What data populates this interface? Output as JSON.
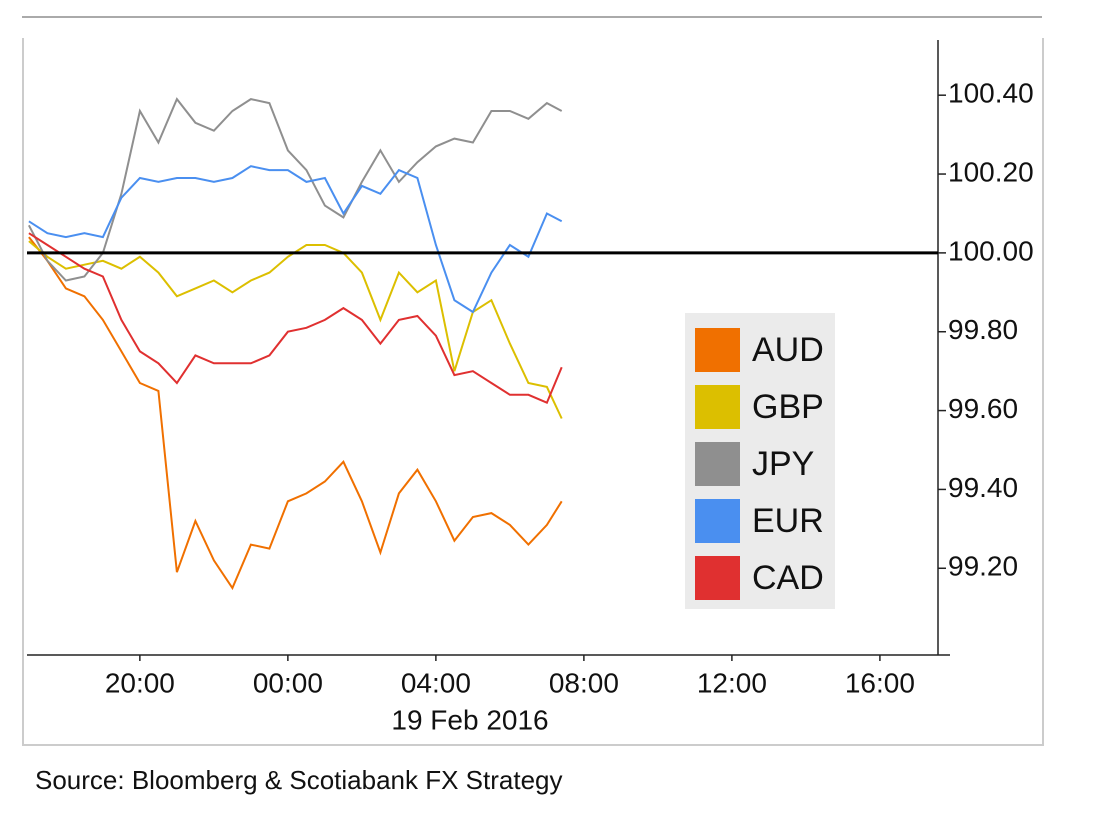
{
  "chart_data": {
    "type": "line",
    "x": [
      17.0,
      17.5,
      18.0,
      18.5,
      19.0,
      19.5,
      20.0,
      20.5,
      21.0,
      21.5,
      22.0,
      22.5,
      23.0,
      23.5,
      24.0,
      24.5,
      25.0,
      25.5,
      26.0,
      26.5,
      27.0,
      27.5,
      28.0,
      28.5,
      29.0,
      29.5,
      30.0,
      30.5,
      31.0,
      31.4
    ],
    "x_label": "19 Feb 2016",
    "xlim": [
      16.95,
      41.57
    ],
    "xticks": [
      {
        "value": 20,
        "label": "20:00"
      },
      {
        "value": 24,
        "label": "00:00"
      },
      {
        "value": 28,
        "label": "04:00"
      },
      {
        "value": 32,
        "label": "08:00"
      },
      {
        "value": 36,
        "label": "12:00"
      },
      {
        "value": 40,
        "label": "16:00"
      }
    ],
    "ylim": [
      98.98,
      100.54
    ],
    "yticks": [
      {
        "value": 99.2,
        "label": "99.20"
      },
      {
        "value": 99.4,
        "label": "99.40"
      },
      {
        "value": 99.6,
        "label": "99.60"
      },
      {
        "value": 99.8,
        "label": "99.80"
      },
      {
        "value": 100,
        "label": "100.00"
      },
      {
        "value": 100.2,
        "label": "100.20"
      },
      {
        "value": 100.4,
        "label": "100.40"
      }
    ],
    "reference_line": 100,
    "series": [
      {
        "name": "AUD",
        "color": "#f07000",
        "values": [
          100.04,
          99.98,
          99.91,
          99.89,
          99.83,
          99.75,
          99.67,
          99.65,
          99.19,
          99.32,
          99.22,
          99.15,
          99.26,
          99.25,
          99.37,
          99.39,
          99.42,
          99.47,
          99.37,
          99.24,
          99.39,
          99.45,
          99.37,
          99.27,
          99.33,
          99.34,
          99.31,
          99.26,
          99.31,
          99.37
        ]
      },
      {
        "name": "GBP",
        "color": "#dcbf00",
        "values": [
          100.03,
          99.99,
          99.96,
          99.97,
          99.98,
          99.96,
          99.99,
          99.95,
          99.89,
          99.91,
          99.93,
          99.9,
          99.93,
          99.95,
          99.99,
          100.02,
          100.02,
          100.0,
          99.95,
          99.83,
          99.95,
          99.9,
          99.93,
          99.7,
          99.85,
          99.88,
          99.77,
          99.67,
          99.66,
          99.58
        ]
      },
      {
        "name": "JPY",
        "color": "#8f8f8f",
        "values": [
          100.07,
          99.98,
          99.93,
          99.94,
          100.0,
          100.15,
          100.36,
          100.28,
          100.39,
          100.33,
          100.31,
          100.36,
          100.39,
          100.38,
          100.26,
          100.21,
          100.12,
          100.09,
          100.18,
          100.26,
          100.18,
          100.23,
          100.27,
          100.29,
          100.28,
          100.36,
          100.36,
          100.34,
          100.38,
          100.36
        ]
      },
      {
        "name": "EUR",
        "color": "#4a8ff0",
        "values": [
          100.08,
          100.05,
          100.04,
          100.05,
          100.04,
          100.14,
          100.19,
          100.18,
          100.19,
          100.19,
          100.18,
          100.19,
          100.22,
          100.21,
          100.21,
          100.18,
          100.19,
          100.1,
          100.17,
          100.15,
          100.21,
          100.19,
          100.02,
          99.88,
          99.85,
          99.95,
          100.02,
          99.99,
          100.1,
          100.08
        ]
      },
      {
        "name": "CAD",
        "color": "#e03030",
        "values": [
          100.05,
          100.02,
          99.99,
          99.96,
          99.94,
          99.83,
          99.75,
          99.72,
          99.67,
          99.74,
          99.72,
          99.72,
          99.72,
          99.74,
          99.8,
          99.81,
          99.83,
          99.86,
          99.83,
          99.77,
          99.83,
          99.84,
          99.79,
          99.69,
          99.7,
          99.67,
          99.64,
          99.64,
          99.62,
          99.71
        ]
      }
    ],
    "source": "Source: Bloomberg & Scotiabank FX Strategy"
  }
}
